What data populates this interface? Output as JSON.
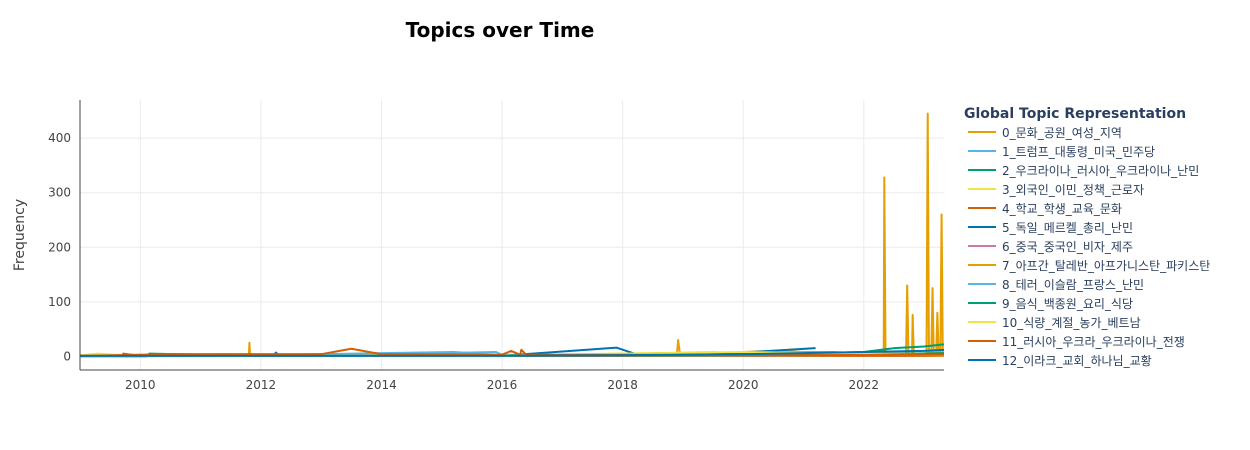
{
  "chart_data": {
    "type": "line",
    "title": "Topics over Time",
    "xlabel": "",
    "ylabel": "Frequency",
    "xlim": [
      2009.0,
      2023.33
    ],
    "ylim": [
      -25,
      470
    ],
    "x_ticks": [
      2010,
      2012,
      2014,
      2016,
      2018,
      2020,
      2022
    ],
    "x_tick_labels": [
      "2010",
      "2012",
      "2014",
      "2016",
      "2018",
      "2020",
      "2022"
    ],
    "y_ticks": [
      0,
      100,
      200,
      300,
      400
    ],
    "y_tick_labels": [
      "0",
      "100",
      "200",
      "300",
      "400"
    ],
    "grid": true,
    "legend_title": "Global Topic Representation",
    "legend_position": "right",
    "series": [
      {
        "name": "0_문화_공원_여성_지역",
        "color": "#E69F00",
        "x": [
          2009.1,
          2010.0,
          2011.0,
          2011.8,
          2011.81,
          2011.82,
          2013.0,
          2015.0,
          2017.0,
          2018.0,
          2018.9,
          2018.92,
          2018.95,
          2019.5,
          2020.0,
          2020.5,
          2021.0,
          2021.5,
          2022.0,
          2022.33,
          2022.34,
          2022.36,
          2022.7,
          2022.72,
          2022.74,
          2022.8,
          2022.81,
          2022.83,
          2023.04,
          2023.06,
          2023.08,
          2023.12,
          2023.14,
          2023.16,
          2023.2,
          2023.22,
          2023.24,
          2023.27,
          2023.29,
          2023.31
        ],
        "y": [
          2,
          2,
          2,
          2,
          25,
          2,
          2,
          2,
          3,
          3,
          3,
          30,
          5,
          5,
          8,
          10,
          8,
          8,
          5,
          5,
          328,
          5,
          5,
          130,
          5,
          5,
          76,
          5,
          5,
          445,
          5,
          5,
          125,
          5,
          5,
          80,
          5,
          5,
          260,
          5
        ]
      },
      {
        "name": "1_트럼프_대통령_미국_민주당",
        "color": "#56B4E9",
        "x": [
          2009.0,
          2012.0,
          2015.0,
          2015.9,
          2016.0,
          2018.0,
          2020.0,
          2022.0,
          2023.33
        ],
        "y": [
          1,
          2,
          6,
          8,
          3,
          2,
          3,
          4,
          5
        ]
      },
      {
        "name": "2_우크라이나_러시아_우크라이나_난민",
        "color": "#009E73",
        "x": [
          2009.0,
          2010.1,
          2010.15,
          2012.0,
          2016.0,
          2020.0,
          2022.0,
          2022.5,
          2023.0,
          2023.33
        ],
        "y": [
          0,
          0,
          5,
          1,
          1,
          2,
          8,
          15,
          18,
          22
        ]
      },
      {
        "name": "3_외국인_이민_정책_근로자",
        "color": "#F0E442",
        "x": [
          2009.0,
          2009.3,
          2009.6,
          2012.0,
          2016.0,
          2018.5,
          2019.5,
          2020.0,
          2021.0,
          2022.0,
          2023.33
        ],
        "y": [
          2,
          5,
          3,
          2,
          2,
          6,
          8,
          5,
          4,
          3,
          2
        ]
      },
      {
        "name": "4_학교_학생_교육_문화",
        "color": "#D55E00",
        "x": [
          2009.0,
          2009.7,
          2009.72,
          2010.0,
          2012.0,
          2014.0,
          2016.0,
          2020.0,
          2023.33
        ],
        "y": [
          1,
          1,
          5,
          1,
          1,
          1,
          1,
          1,
          1
        ]
      },
      {
        "name": "5_독일_메르켈_총리_난민",
        "color": "#0072B2",
        "x": [
          2009.0,
          2012.2,
          2012.25,
          2012.3,
          2015.5,
          2016.0,
          2017.9,
          2018.2,
          2020.0,
          2021.2
        ],
        "y": [
          1,
          1,
          7,
          1,
          1,
          1,
          16,
          5,
          7,
          15
        ]
      },
      {
        "name": "6_중국_중국인_비자_제주",
        "color": "#CC79A7",
        "x": [
          2009.0,
          2012.0,
          2016.0,
          2020.0,
          2022.0,
          2023.33
        ],
        "y": [
          1,
          1,
          1,
          2,
          3,
          4
        ]
      },
      {
        "name": "7_아프간_탈레반_아프가니스탄_파키스탄",
        "color": "#E69F00",
        "x": [
          2009.0,
          2013.0,
          2016.0,
          2020.0,
          2021.0,
          2023.33
        ],
        "y": [
          0,
          1,
          1,
          2,
          4,
          2
        ]
      },
      {
        "name": "8_테러_이슬람_프랑스_난민",
        "color": "#56B4E9",
        "x": [
          2009.0,
          2012.0,
          2014.0,
          2015.2,
          2016.0,
          2020.0,
          2023.33
        ],
        "y": [
          1,
          2,
          6,
          8,
          2,
          2,
          3
        ]
      },
      {
        "name": "9_음식_백종원_요리_식당",
        "color": "#009E73",
        "x": [
          2009.0,
          2012.0,
          2016.0,
          2020.0,
          2022.0,
          2023.33
        ],
        "y": [
          1,
          1,
          1,
          2,
          4,
          6
        ]
      },
      {
        "name": "10_식량_계절_농가_베트남",
        "color": "#F0E442",
        "x": [
          2009.0,
          2014.0,
          2016.0,
          2018.0,
          2020.0,
          2023.33
        ],
        "y": [
          1,
          1,
          1,
          5,
          8,
          2
        ]
      },
      {
        "name": "11_러시아_우크라_우크라이나_전쟁",
        "color": "#D55E00",
        "x": [
          2009.0,
          2010.5,
          2013.0,
          2013.5,
          2014.0,
          2016.0,
          2016.15,
          2016.3,
          2016.32,
          2016.4,
          2018.0,
          2020.0,
          2023.33
        ],
        "y": [
          1,
          4,
          4,
          14,
          4,
          3,
          10,
          3,
          12,
          3,
          3,
          2,
          3
        ]
      },
      {
        "name": "12_이라크_교회_하나님_교황",
        "color": "#0072B2",
        "x": [
          2009.0,
          2012.0,
          2016.0,
          2018.0,
          2020.0,
          2022.0,
          2023.0,
          2023.33
        ],
        "y": [
          1,
          1,
          1,
          2,
          4,
          8,
          10,
          12
        ]
      }
    ]
  }
}
